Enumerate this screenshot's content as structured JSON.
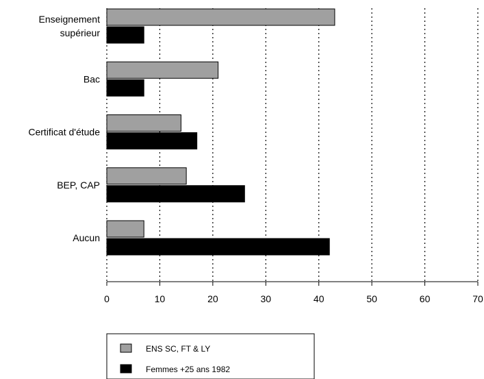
{
  "chart_data": {
    "type": "bar",
    "orientation": "horizontal",
    "categories": [
      [
        "Enseignement",
        "supérieur"
      ],
      [
        "Bac"
      ],
      [
        "Certificat d'étude"
      ],
      [
        "BEP, CAP"
      ],
      [
        "Aucun"
      ]
    ],
    "series": [
      {
        "name": "ENS SC, FT & LY",
        "color": "#a0a0a0",
        "values": [
          43,
          21,
          14,
          15,
          7
        ]
      },
      {
        "name": "Femmes +25 ans 1982",
        "color": "#000000",
        "values": [
          7,
          7,
          17,
          26,
          42
        ]
      }
    ],
    "xlim": [
      0,
      70
    ],
    "xticks": [
      "0",
      "10",
      "20",
      "30",
      "40",
      "50",
      "60",
      "70"
    ],
    "grid": "vertical-dotted",
    "legend_position": "bottom"
  }
}
